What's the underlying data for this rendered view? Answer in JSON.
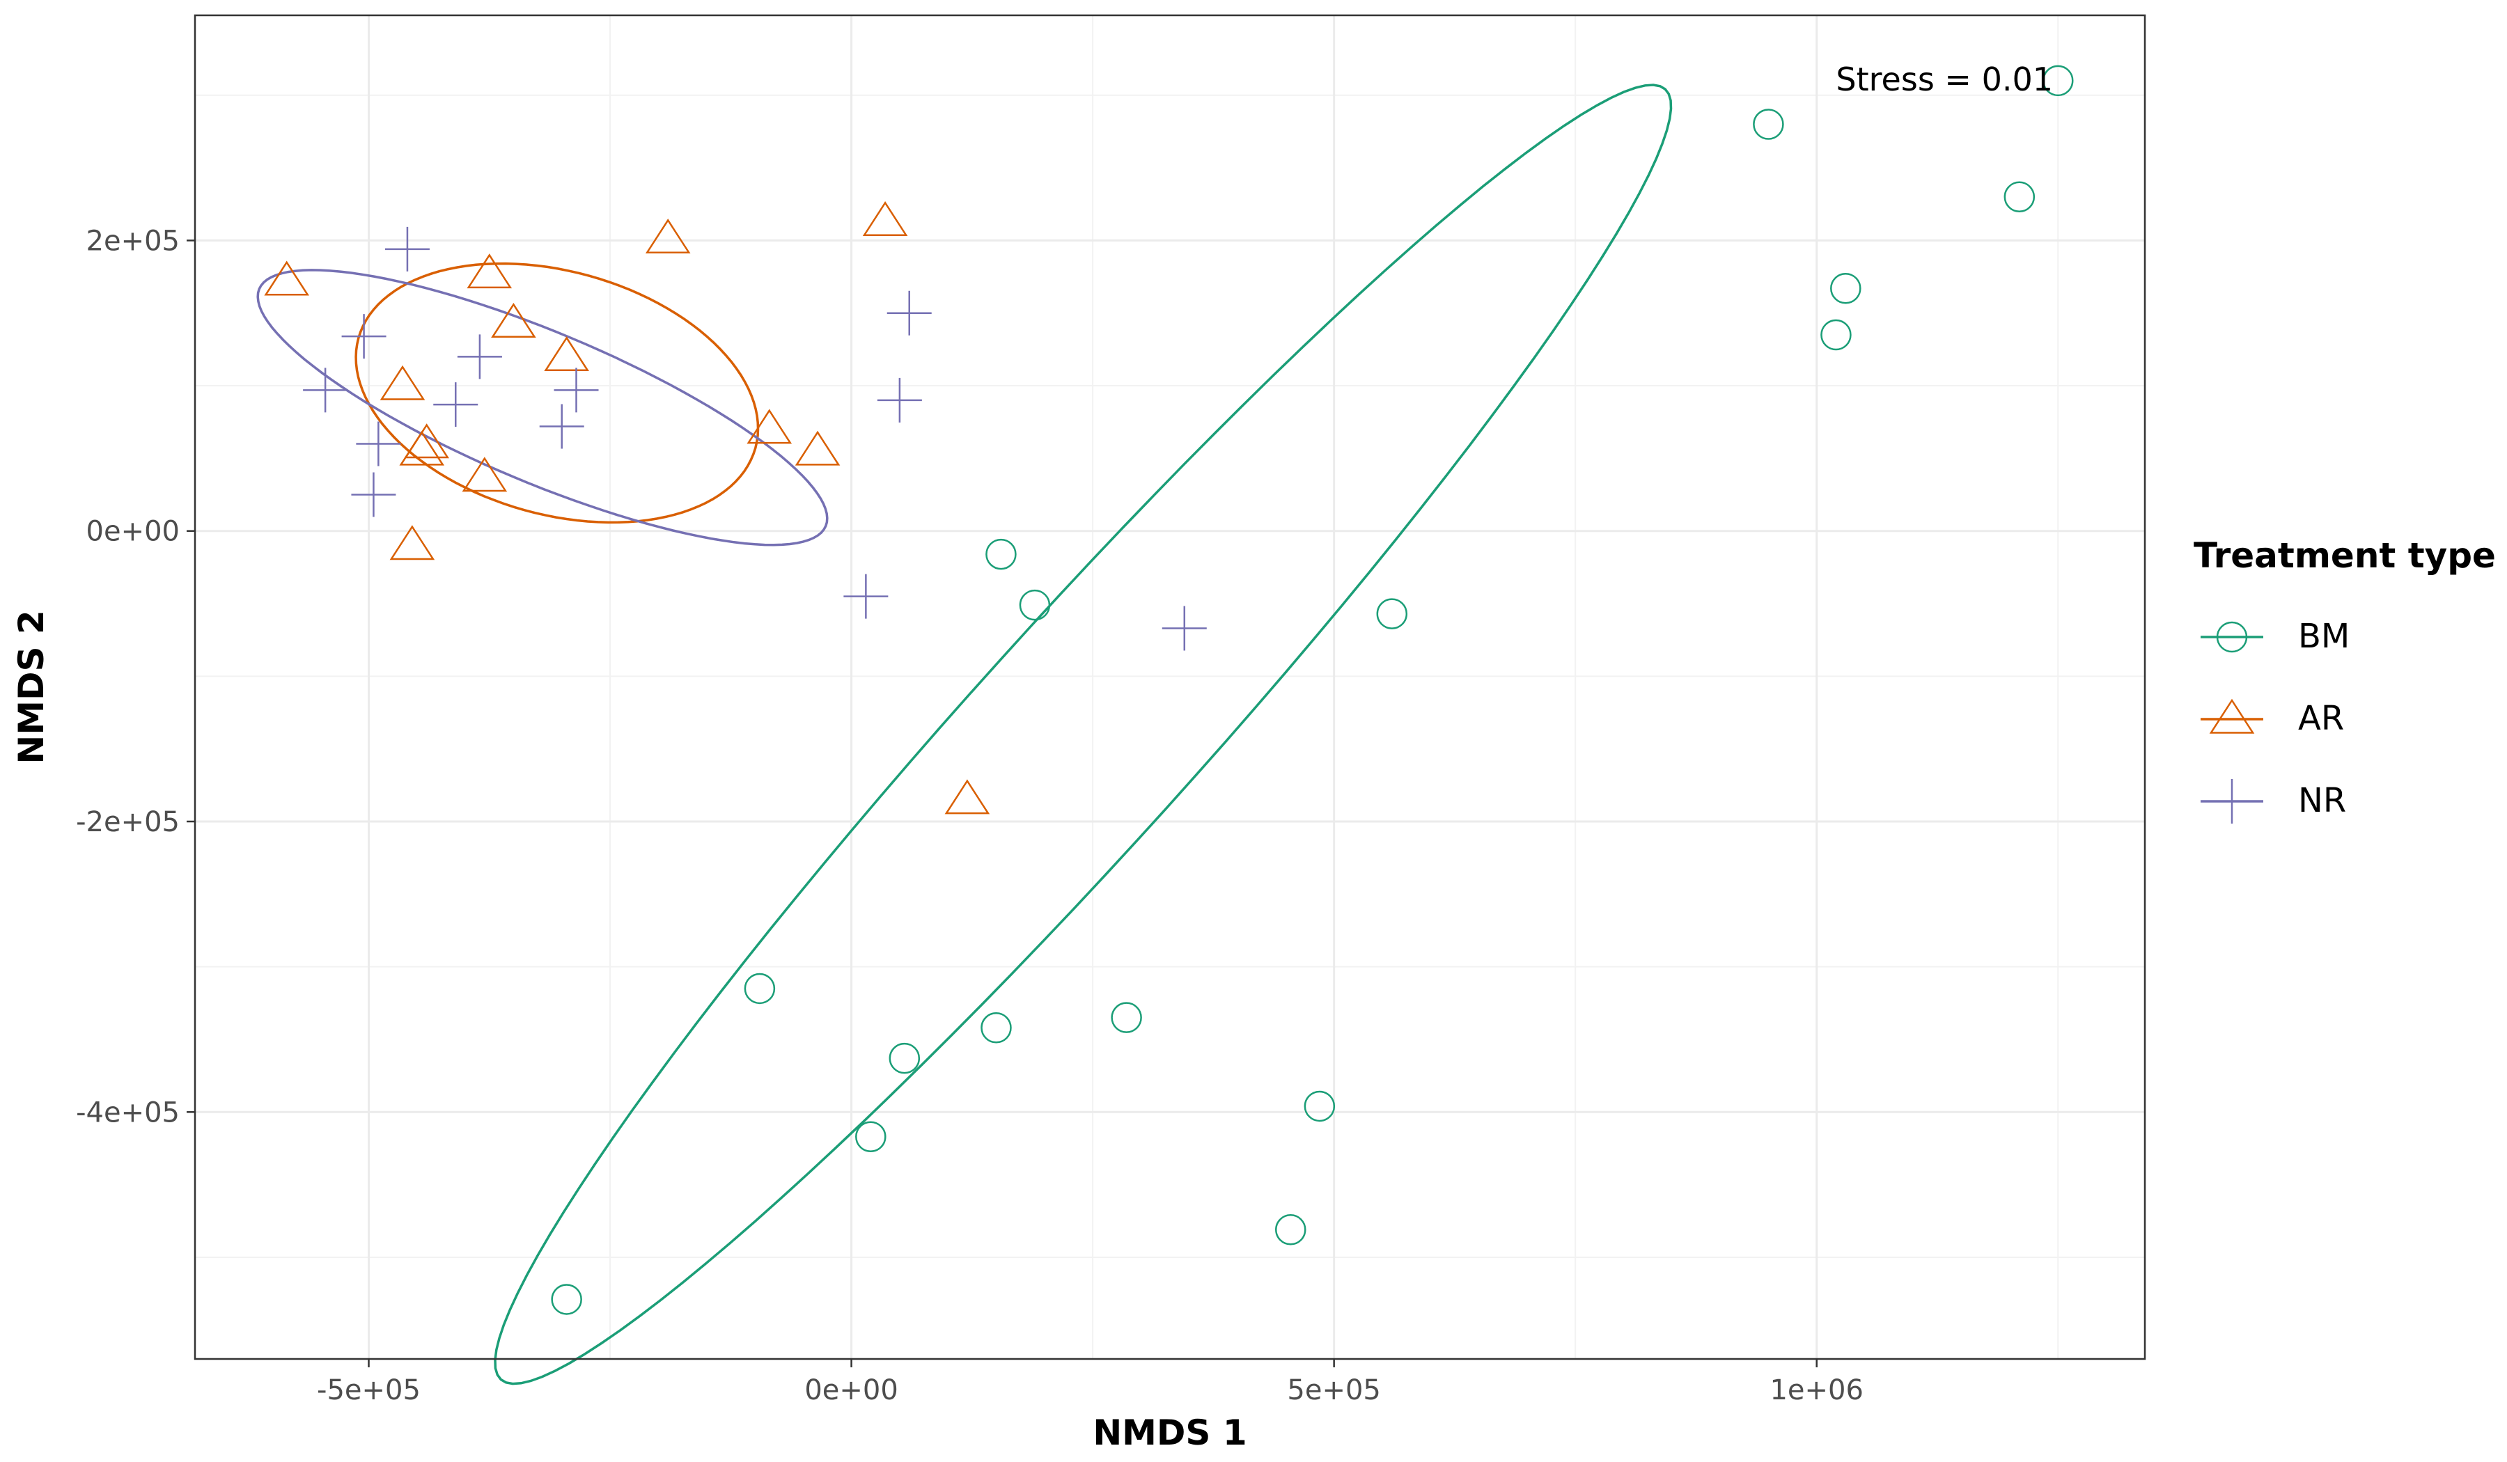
{
  "chart_data": {
    "type": "scatter",
    "title": "",
    "xlabel": "NMDS 1",
    "ylabel": "NMDS 2",
    "xlim": [
      -680000,
      1340000
    ],
    "ylim": [
      -570000,
      355000
    ],
    "x_ticks": [
      -500000,
      0,
      500000,
      1000000
    ],
    "x_tick_labels": [
      "-5e+05",
      "0e+00",
      "5e+05",
      "1e+06"
    ],
    "y_ticks": [
      -400000,
      -200000,
      0,
      200000
    ],
    "y_tick_labels": [
      "-4e+05",
      "-2e+05",
      "0e+00",
      "2e+05"
    ],
    "grid": true,
    "annotation": "Stress = 0.01",
    "legend": {
      "title": "Treatment type",
      "placement": "right"
    },
    "series": [
      {
        "name": "BM",
        "marker": "circle",
        "color": "#1b9e77",
        "points": [
          [
            1250000,
            310000
          ],
          [
            950000,
            280000
          ],
          [
            1210000,
            230000
          ],
          [
            1030000,
            167000
          ],
          [
            1020000,
            135000
          ],
          [
            155000,
            -16000
          ],
          [
            190000,
            -51000
          ],
          [
            560000,
            -57000
          ],
          [
            -95000,
            -315000
          ],
          [
            150000,
            -342000
          ],
          [
            285000,
            -335000
          ],
          [
            55000,
            -363000
          ],
          [
            485000,
            -396000
          ],
          [
            20000,
            -417000
          ],
          [
            455000,
            -481000
          ],
          [
            -295000,
            -529000
          ]
        ],
        "ellipse": {
          "center": [
            240000,
            -140000
          ],
          "semi_major": 750000,
          "semi_minor": 92000,
          "angle_deg": 36
        }
      },
      {
        "name": "AR",
        "marker": "triangle",
        "color": "#d95f02",
        "points": [
          [
            35000,
            213000
          ],
          [
            -190000,
            201000
          ],
          [
            -585000,
            172000
          ],
          [
            -375000,
            177000
          ],
          [
            -350000,
            143000
          ],
          [
            -295000,
            120000
          ],
          [
            -465000,
            100000
          ],
          [
            -85000,
            70000
          ],
          [
            -35000,
            55000
          ],
          [
            -440000,
            60000
          ],
          [
            -445000,
            55000
          ],
          [
            -380000,
            37000
          ],
          [
            -455000,
            -10000
          ],
          [
            120000,
            -185000
          ]
        ],
        "ellipse": {
          "center": [
            -305000,
            95000
          ],
          "semi_major": 210000,
          "semi_minor": 85000,
          "angle_deg": -8
        }
      },
      {
        "name": "NR",
        "marker": "plus",
        "color": "#7570b3",
        "points": [
          [
            -460000,
            194000
          ],
          [
            60000,
            150000
          ],
          [
            -505000,
            134000
          ],
          [
            -385000,
            120000
          ],
          [
            -545000,
            97000
          ],
          [
            -285000,
            97000
          ],
          [
            -410000,
            87000
          ],
          [
            50000,
            90000
          ],
          [
            -300000,
            72000
          ],
          [
            -490000,
            60000
          ],
          [
            -495000,
            25000
          ],
          [
            15000,
            -45000
          ],
          [
            345000,
            -67000
          ]
        ],
        "ellipse": {
          "center": [
            -320000,
            85000
          ],
          "semi_major": 305000,
          "semi_minor": 54000,
          "angle_deg": -15
        }
      }
    ]
  }
}
